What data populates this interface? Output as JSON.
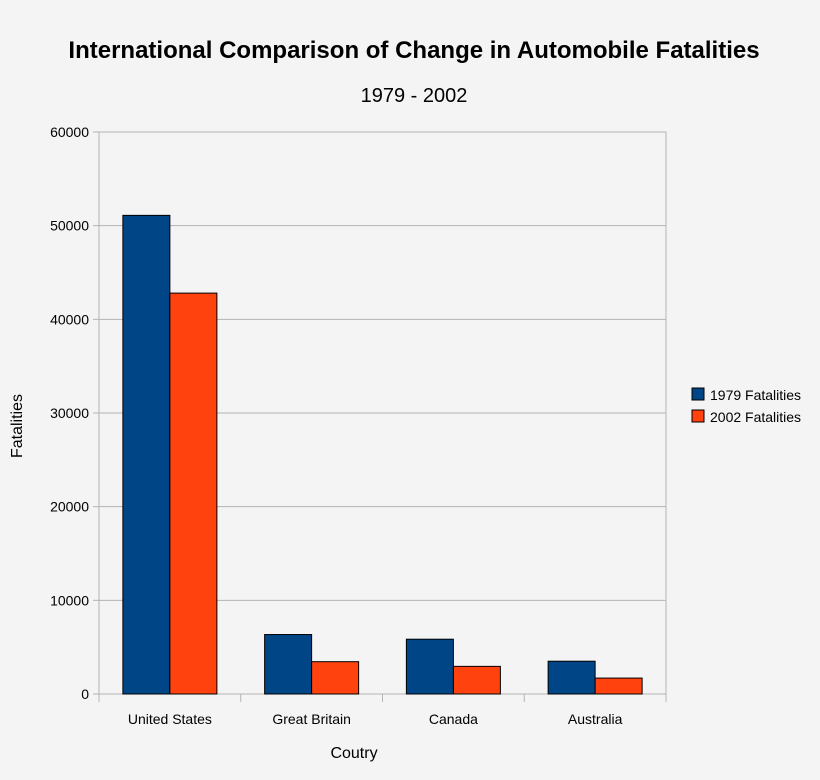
{
  "chart_data": {
    "type": "bar",
    "title": "International Comparison of Change in Automobile Fatalities",
    "subtitle": "1979 - 2002",
    "xlabel": "Coutry",
    "ylabel": "Fatalities",
    "ylim": [
      0,
      60000
    ],
    "yticks": [
      "0",
      "10000",
      "20000",
      "30000",
      "40000",
      "50000",
      "60000"
    ],
    "categories": [
      "United States",
      "Great Britain",
      "Canada",
      "Australia"
    ],
    "series": [
      {
        "name": "1979 Fatalities",
        "color": "#004586",
        "values": [
          51100,
          6350,
          5850,
          3500
        ]
      },
      {
        "name": "2002 Fatalities",
        "color": "#ff420e",
        "values": [
          42800,
          3450,
          2950,
          1700
        ]
      }
    ],
    "grid": true,
    "legend": "right"
  }
}
